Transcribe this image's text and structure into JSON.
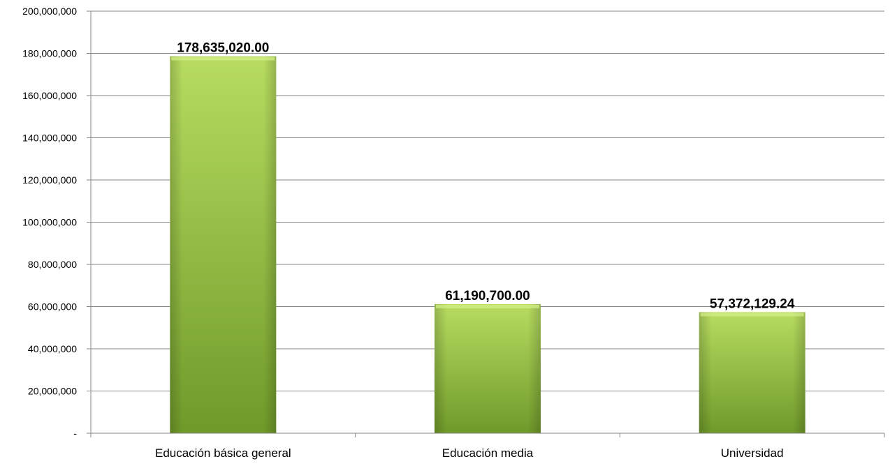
{
  "chart_data": {
    "type": "bar",
    "categories": [
      "Educación básica general",
      "Educación media",
      "Universidad"
    ],
    "values": [
      178635020.0,
      61190700.0,
      57372129.24
    ],
    "data_labels": [
      "178,635,020.00",
      "61,190,700.00",
      "57,372,129.24"
    ],
    "ylim": [
      0,
      200000000
    ],
    "yticks": [
      0,
      20000000,
      40000000,
      60000000,
      80000000,
      100000000,
      120000000,
      140000000,
      160000000,
      180000000,
      200000000
    ],
    "ytick_labels": [
      "-",
      "20,000,000",
      "40,000,000",
      "60,000,000",
      "80,000,000",
      "100,000,000",
      "120,000,000",
      "140,000,000",
      "160,000,000",
      "180,000,000",
      "200,000,000"
    ],
    "grid": true,
    "bar_color": "#8db53c",
    "bar_color_light": "#b7dc60",
    "bar_color_dark": "#6f9a2a"
  }
}
